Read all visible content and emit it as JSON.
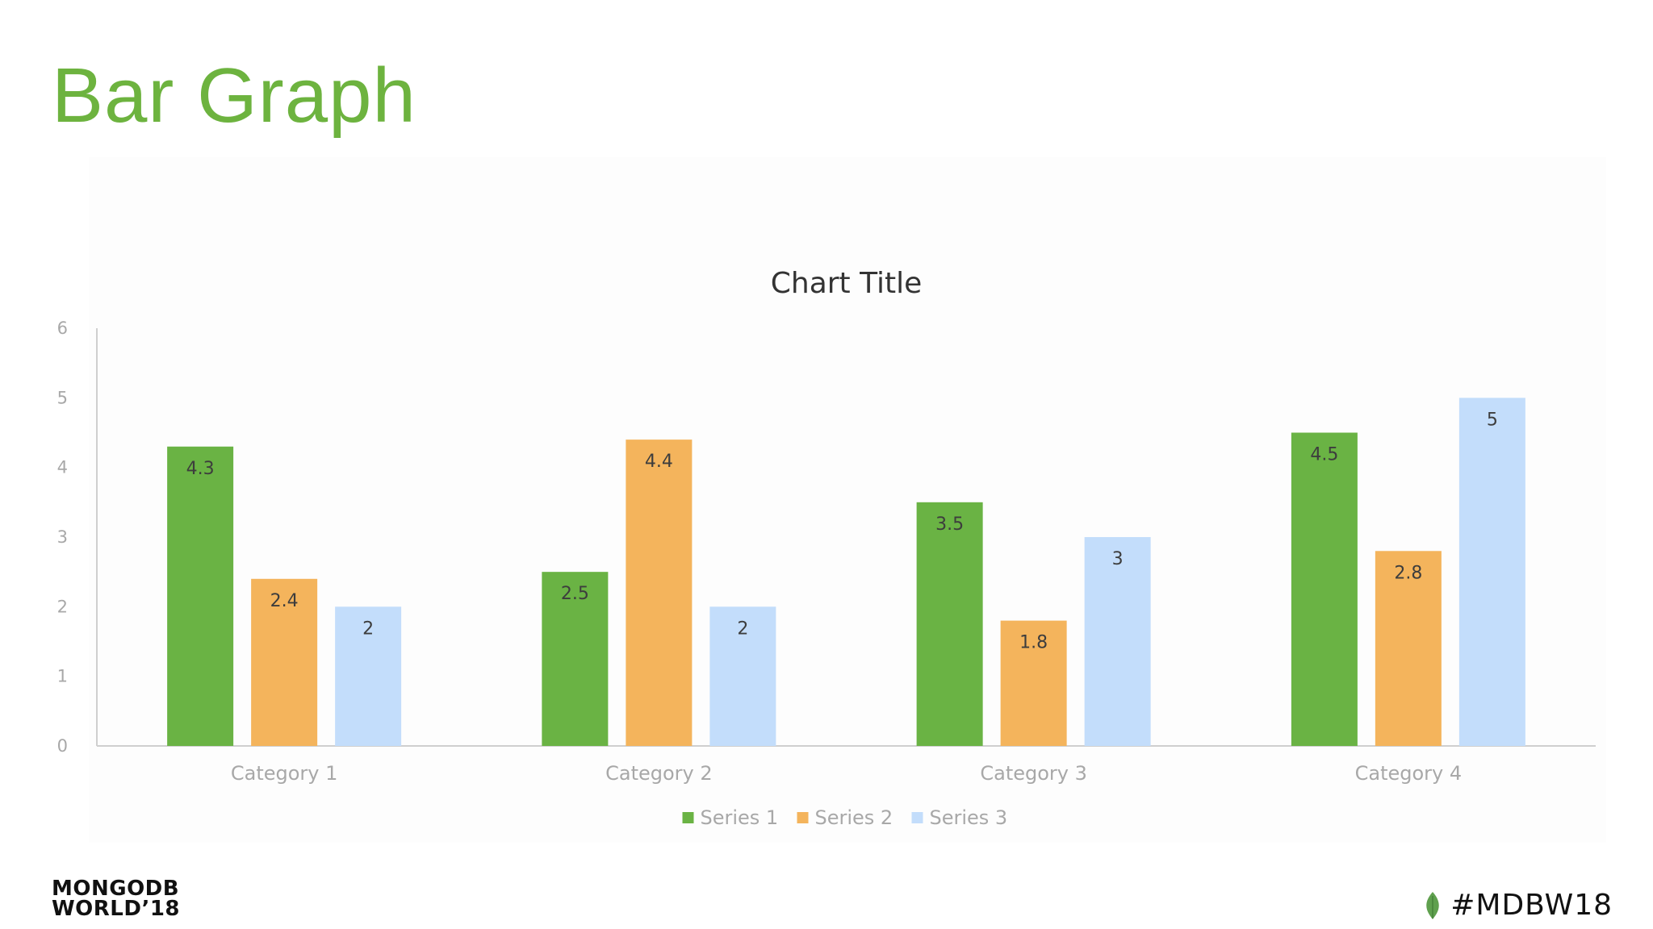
{
  "slide": {
    "title": "Bar Graph"
  },
  "footer": {
    "logo_line1": "MONGODB",
    "logo_line2": "WORLD’18",
    "hashtag": "#MDBW18",
    "leaf_icon": "mongodb-leaf-icon"
  },
  "colors": {
    "title": "#6db33f",
    "series1": "#6ab344",
    "series2": "#f4b45c",
    "series3": "#c3ddfb",
    "axis": "#cfcfcf",
    "tick_text": "#a8a8a8",
    "chart_title": "#333333",
    "data_label": "#3d3d3d"
  },
  "chart_data": {
    "type": "bar",
    "title": "Chart Title",
    "xlabel": "",
    "ylabel": "",
    "ylim": [
      0,
      6
    ],
    "yticks": [
      0,
      1,
      2,
      3,
      4,
      5,
      6
    ],
    "grid": false,
    "legend": "bottom",
    "categories": [
      "Category 1",
      "Category 2",
      "Category 3",
      "Category 4"
    ],
    "series": [
      {
        "name": "Series 1",
        "values": [
          4.3,
          2.5,
          3.5,
          4.5
        ]
      },
      {
        "name": "Series 2",
        "values": [
          2.4,
          4.4,
          1.8,
          2.8
        ]
      },
      {
        "name": "Series 3",
        "values": [
          2,
          2,
          3,
          5
        ]
      }
    ]
  }
}
